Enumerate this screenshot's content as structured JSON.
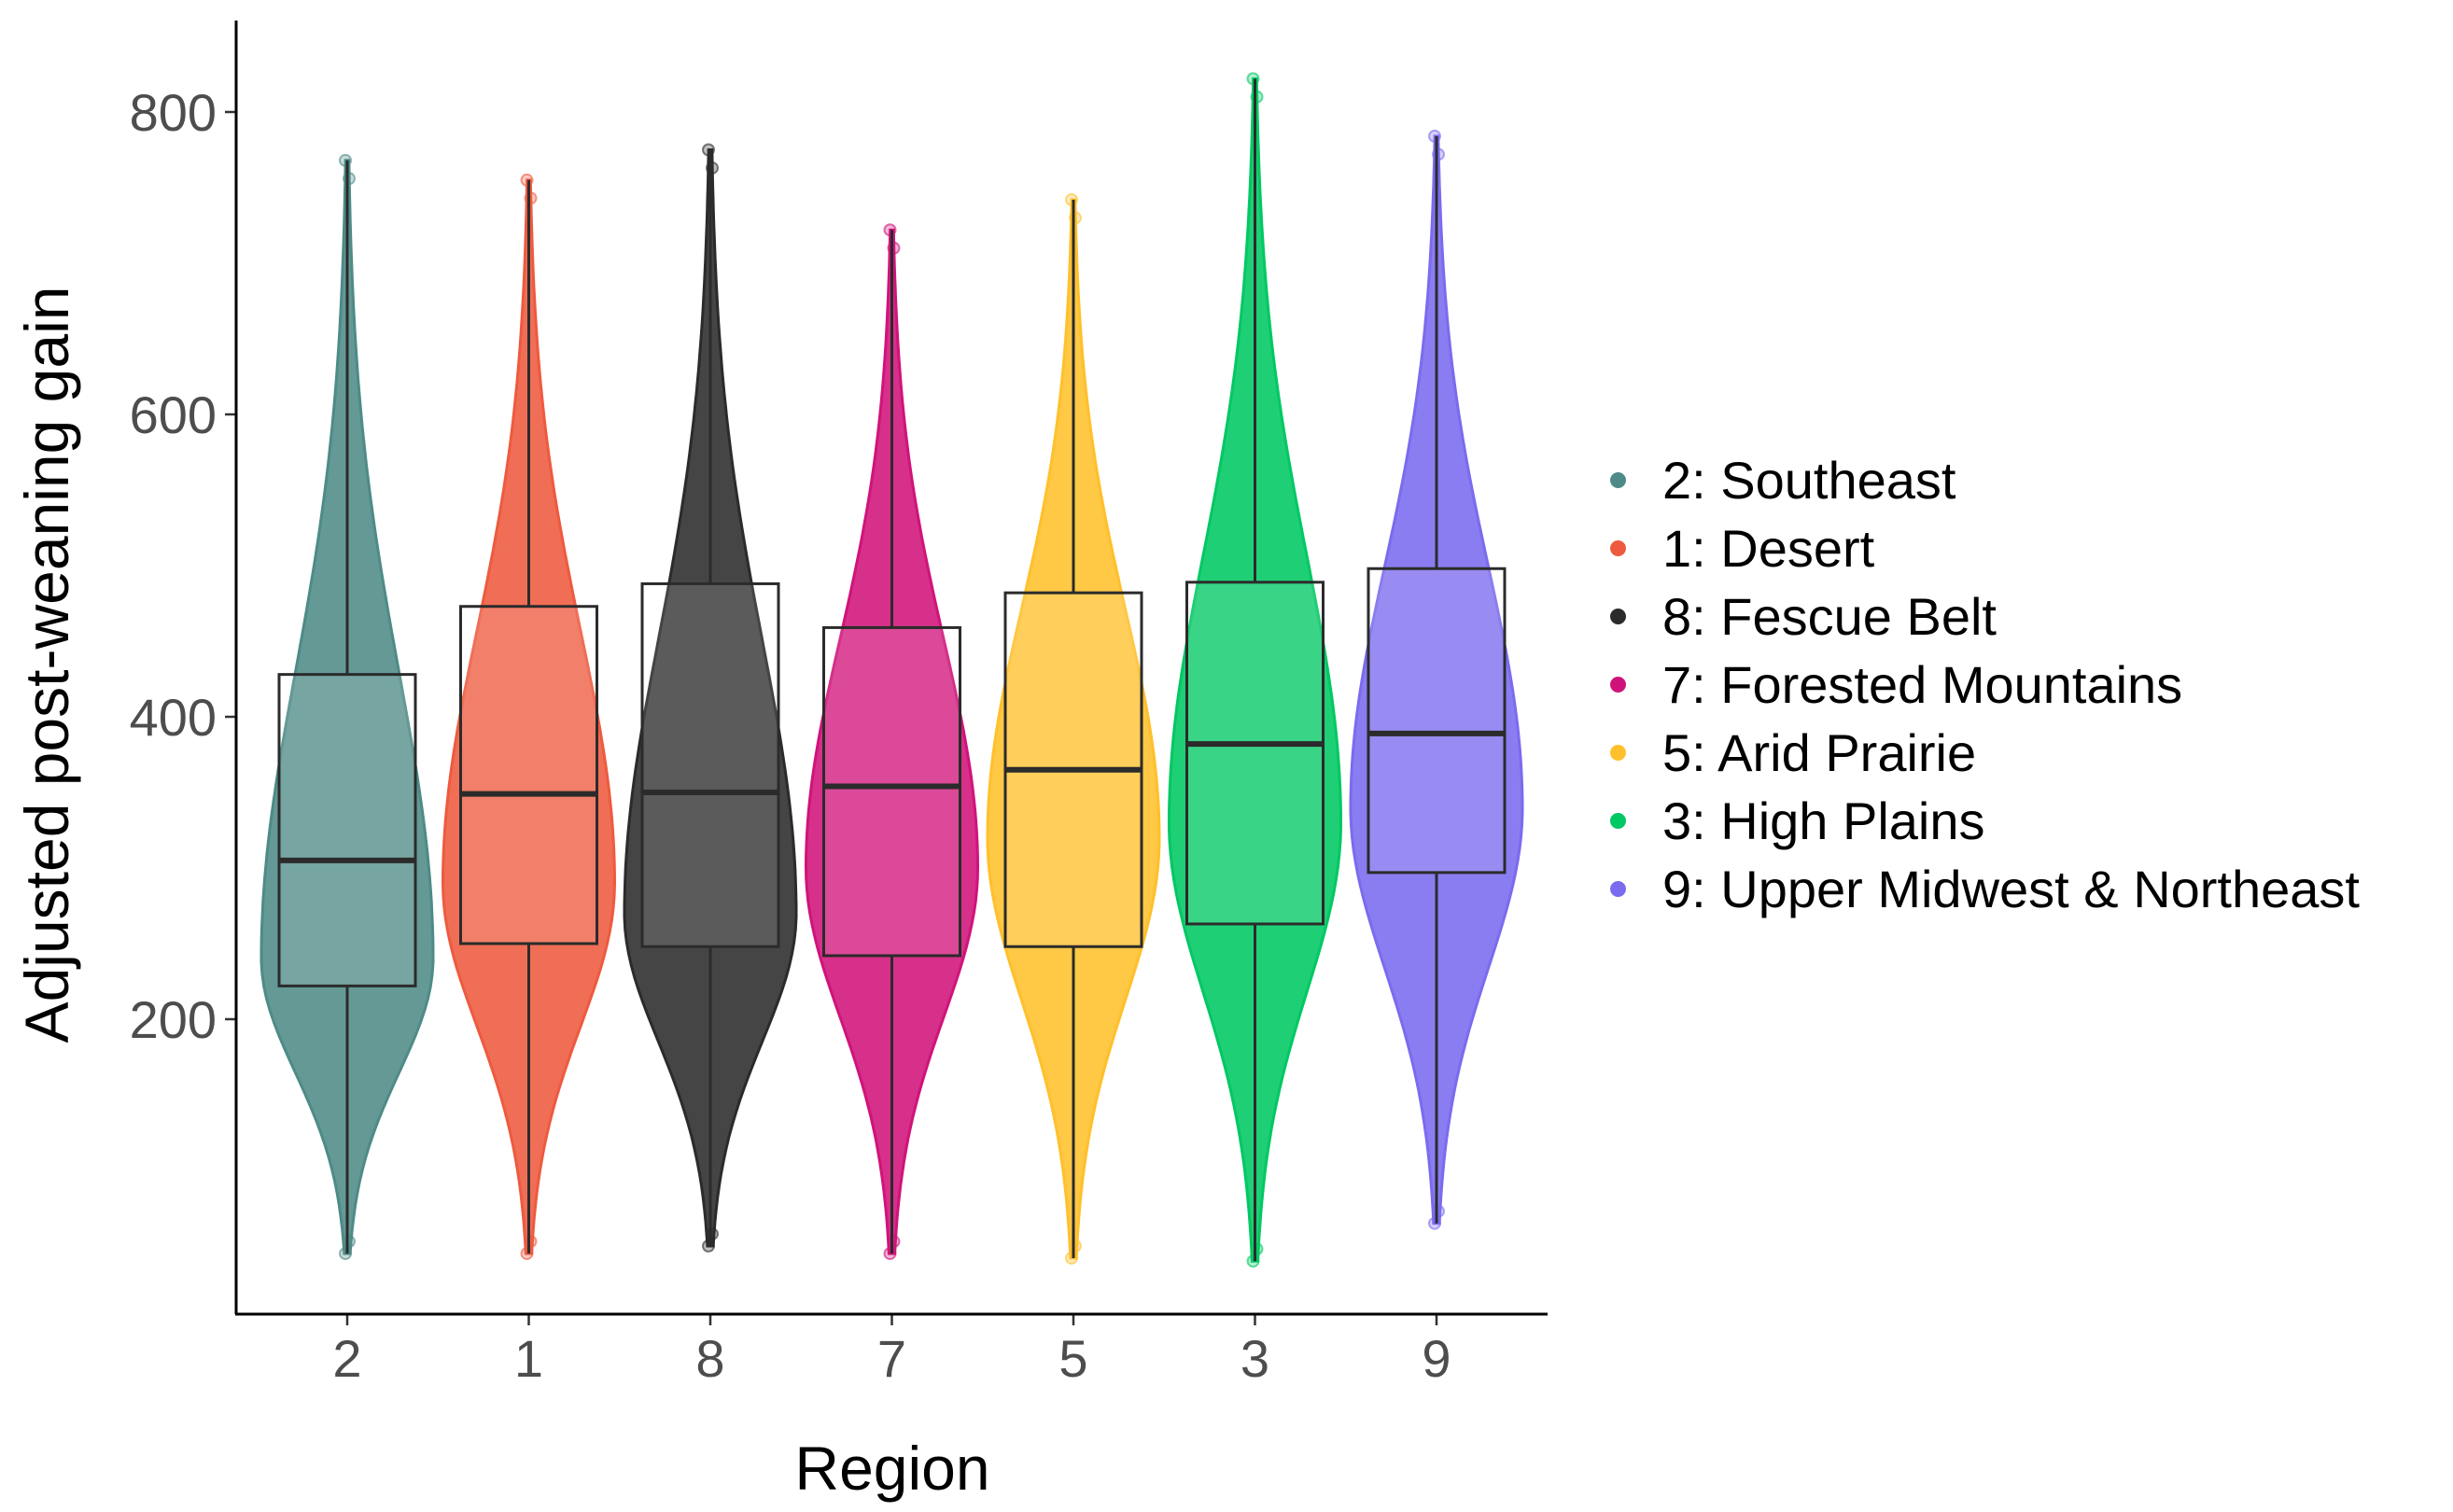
{
  "chart_data": {
    "type": "violin-box",
    "xlabel": "Region",
    "ylabel": "Adjusted post-weaning gain",
    "ylim": [
      0,
      860
    ],
    "yticks": [
      200,
      400,
      600,
      800
    ],
    "categories": [
      "2",
      "1",
      "8",
      "7",
      "5",
      "3",
      "9"
    ],
    "series": [
      {
        "name": "2: Southeast",
        "category": "2",
        "color": "#4E8B87",
        "min": 45,
        "q1": 222,
        "median": 305,
        "q3": 428,
        "max": 768,
        "mode": 240
      },
      {
        "name": "1: Desert",
        "category": "1",
        "color": "#EE5A3F",
        "min": 45,
        "q1": 250,
        "median": 349,
        "q3": 473,
        "max": 755,
        "mode": 290
      },
      {
        "name": "8: Fescue Belt",
        "category": "8",
        "color": "#2B2B2B",
        "min": 50,
        "q1": 248,
        "median": 350,
        "q3": 488,
        "max": 775,
        "mode": 270
      },
      {
        "name": "7: Forested Mountains",
        "category": "7",
        "color": "#D0137A",
        "min": 45,
        "q1": 242,
        "median": 354,
        "q3": 459,
        "max": 722,
        "mode": 300
      },
      {
        "name": "5: Arid Prairie",
        "category": "5",
        "color": "#FFC02B",
        "min": 42,
        "q1": 248,
        "median": 365,
        "q3": 482,
        "max": 742,
        "mode": 320
      },
      {
        "name": "3: High Plains",
        "category": "3",
        "color": "#00C863",
        "min": 40,
        "q1": 263,
        "median": 382,
        "q3": 489,
        "max": 822,
        "mode": 330
      },
      {
        "name": "9: Upper Midwest & Northeast",
        "category": "9",
        "color": "#7A6BEF",
        "min": 65,
        "q1": 297,
        "median": 389,
        "q3": 498,
        "max": 784,
        "mode": 340
      }
    ]
  }
}
